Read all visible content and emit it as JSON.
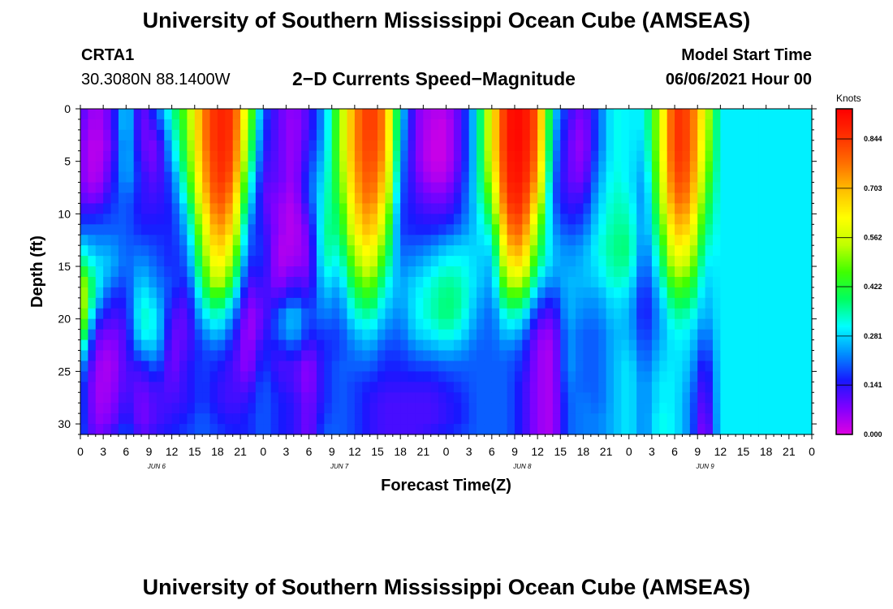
{
  "header": {
    "title_top": "University of Southern Mississippi Ocean Cube (AMSEAS)",
    "title_bottom": "University of Southern Mississippi Ocean Cube (AMSEAS)",
    "station_id": "CRTA1",
    "station_coords": "30.3080N  88.1400W",
    "plot_title": "2−D Currents Speed−Magnitude",
    "model_start_label": "Model Start Time",
    "model_start_value": "06/06/2021 Hour 00"
  },
  "chart_data": {
    "type": "heatmap",
    "title": "2−D Currents Speed−Magnitude",
    "xlabel": "Forecast Time(Z)",
    "ylabel": "Depth (ft)",
    "x_ticks": [
      "0",
      "3",
      "6",
      "9",
      "12",
      "15",
      "18",
      "21",
      "0",
      "3",
      "6",
      "9",
      "12",
      "15",
      "18",
      "21",
      "0",
      "3",
      "6",
      "9",
      "12",
      "15",
      "18",
      "21",
      "0",
      "3",
      "6",
      "9",
      "12",
      "15",
      "18",
      "21",
      "0"
    ],
    "day_labels": [
      "JUN 6",
      "JUN 7",
      "JUN 8",
      "JUN 9"
    ],
    "xlim_hours": [
      0,
      96
    ],
    "ylim": [
      0,
      31
    ],
    "y_ticks": [
      "0",
      "5",
      "10",
      "15",
      "20",
      "25",
      "30"
    ],
    "y_inverted": true,
    "colorbar": {
      "units": "Knots",
      "ticks": [
        "0.000",
        "0.141",
        "0.281",
        "0.422",
        "0.562",
        "0.703",
        "0.844"
      ],
      "tick_values": [
        0.0,
        0.141,
        0.281,
        0.422,
        0.562,
        0.703,
        0.844
      ],
      "range": [
        0,
        0.93
      ],
      "colors": [
        "#e000e0",
        "#8000ff",
        "#1818ff",
        "#0090ff",
        "#00ffff",
        "#00ff60",
        "#40ff00",
        "#c0ff00",
        "#ffff00",
        "#ffc000",
        "#ff7000",
        "#ff3000",
        "#ff0000"
      ]
    },
    "depth_levels_ft": [
      0,
      1.6,
      3.3,
      5,
      6.6,
      8.2,
      9.8,
      11.5,
      13.1,
      14.8,
      16.4,
      18,
      19.7,
      21.3,
      23,
      24.6,
      26.2,
      27.9,
      29.5,
      31
    ],
    "time_profiles": [
      {
        "t": 0,
        "v": [
          0.12,
          0.1,
          0.08,
          0.08,
          0.08,
          0.1,
          0.14,
          0.2,
          0.3,
          0.4,
          0.55,
          0.6,
          0.58,
          0.5,
          0.35,
          0.25,
          0.2,
          0.2,
          0.2,
          0.2
        ]
      },
      {
        "t": 2,
        "v": [
          0.04,
          0.03,
          0.02,
          0.02,
          0.03,
          0.06,
          0.14,
          0.2,
          0.24,
          0.3,
          0.32,
          0.3,
          0.2,
          0.12,
          0.08,
          0.06,
          0.05,
          0.05,
          0.06,
          0.08
        ]
      },
      {
        "t": 4,
        "v": [
          0.1,
          0.1,
          0.08,
          0.1,
          0.12,
          0.15,
          0.18,
          0.2,
          0.24,
          0.26,
          0.22,
          0.16,
          0.12,
          0.08,
          0.05,
          0.04,
          0.05,
          0.06,
          0.08,
          0.12
        ]
      },
      {
        "t": 6,
        "v": [
          0.3,
          0.3,
          0.28,
          0.28,
          0.26,
          0.22,
          0.2,
          0.2,
          0.2,
          0.2,
          0.18,
          0.16,
          0.14,
          0.12,
          0.12,
          0.12,
          0.12,
          0.14,
          0.16,
          0.2
        ]
      },
      {
        "t": 8,
        "v": [
          0.08,
          0.08,
          0.1,
          0.12,
          0.14,
          0.14,
          0.14,
          0.16,
          0.2,
          0.24,
          0.28,
          0.32,
          0.34,
          0.32,
          0.24,
          0.14,
          0.1,
          0.08,
          0.08,
          0.1
        ]
      },
      {
        "t": 10,
        "v": [
          0.2,
          0.14,
          0.08,
          0.08,
          0.1,
          0.12,
          0.14,
          0.16,
          0.18,
          0.2,
          0.22,
          0.26,
          0.3,
          0.3,
          0.26,
          0.2,
          0.14,
          0.12,
          0.12,
          0.14
        ]
      },
      {
        "t": 12,
        "v": [
          0.35,
          0.32,
          0.28,
          0.25,
          0.2,
          0.18,
          0.16,
          0.16,
          0.16,
          0.16,
          0.18,
          0.16,
          0.12,
          0.1,
          0.08,
          0.08,
          0.1,
          0.12,
          0.14,
          0.16
        ]
      },
      {
        "t": 14,
        "v": [
          0.5,
          0.48,
          0.46,
          0.44,
          0.4,
          0.36,
          0.3,
          0.26,
          0.22,
          0.2,
          0.16,
          0.12,
          0.1,
          0.1,
          0.12,
          0.14,
          0.14,
          0.14,
          0.16,
          0.18
        ]
      },
      {
        "t": 16,
        "v": [
          0.75,
          0.75,
          0.74,
          0.72,
          0.7,
          0.66,
          0.6,
          0.55,
          0.5,
          0.45,
          0.4,
          0.34,
          0.28,
          0.22,
          0.18,
          0.18,
          0.18,
          0.18,
          0.2,
          0.2
        ]
      },
      {
        "t": 18,
        "v": [
          0.88,
          0.88,
          0.88,
          0.87,
          0.86,
          0.84,
          0.8,
          0.75,
          0.7,
          0.65,
          0.58,
          0.45,
          0.35,
          0.28,
          0.2,
          0.16,
          0.14,
          0.14,
          0.16,
          0.18
        ]
      },
      {
        "t": 20,
        "v": [
          0.85,
          0.85,
          0.84,
          0.83,
          0.8,
          0.75,
          0.7,
          0.65,
          0.58,
          0.5,
          0.42,
          0.32,
          0.24,
          0.18,
          0.14,
          0.12,
          0.12,
          0.12,
          0.14,
          0.16
        ]
      },
      {
        "t": 22,
        "v": [
          0.55,
          0.52,
          0.48,
          0.44,
          0.38,
          0.34,
          0.28,
          0.22,
          0.2,
          0.16,
          0.12,
          0.08,
          0.05,
          0.04,
          0.05,
          0.06,
          0.1,
          0.14,
          0.16,
          0.16
        ]
      },
      {
        "t": 24,
        "v": [
          0.2,
          0.18,
          0.16,
          0.14,
          0.12,
          0.1,
          0.12,
          0.14,
          0.16,
          0.16,
          0.14,
          0.12,
          0.1,
          0.12,
          0.16,
          0.18,
          0.2,
          0.2,
          0.2,
          0.2
        ]
      },
      {
        "t": 26,
        "v": [
          0.1,
          0.1,
          0.1,
          0.1,
          0.1,
          0.08,
          0.06,
          0.06,
          0.04,
          0.04,
          0.06,
          0.12,
          0.2,
          0.2,
          0.14,
          0.12,
          0.14,
          0.16,
          0.16,
          0.16
        ]
      },
      {
        "t": 28,
        "v": [
          0.06,
          0.05,
          0.05,
          0.05,
          0.05,
          0.04,
          0.03,
          0.03,
          0.04,
          0.06,
          0.12,
          0.18,
          0.28,
          0.26,
          0.18,
          0.12,
          0.12,
          0.14,
          0.14,
          0.14
        ]
      },
      {
        "t": 30,
        "v": [
          0.12,
          0.12,
          0.14,
          0.16,
          0.18,
          0.18,
          0.14,
          0.1,
          0.08,
          0.08,
          0.1,
          0.14,
          0.18,
          0.16,
          0.1,
          0.06,
          0.06,
          0.08,
          0.08,
          0.08
        ]
      },
      {
        "t": 32,
        "v": [
          0.25,
          0.25,
          0.26,
          0.28,
          0.3,
          0.32,
          0.34,
          0.36,
          0.36,
          0.34,
          0.3,
          0.26,
          0.22,
          0.18,
          0.16,
          0.16,
          0.16,
          0.16,
          0.18,
          0.2
        ]
      },
      {
        "t": 34,
        "v": [
          0.5,
          0.5,
          0.5,
          0.48,
          0.46,
          0.44,
          0.4,
          0.38,
          0.34,
          0.3,
          0.26,
          0.22,
          0.2,
          0.18,
          0.18,
          0.2,
          0.2,
          0.2,
          0.2,
          0.2
        ]
      },
      {
        "t": 36,
        "v": [
          0.75,
          0.75,
          0.75,
          0.74,
          0.72,
          0.7,
          0.66,
          0.62,
          0.56,
          0.5,
          0.44,
          0.38,
          0.32,
          0.26,
          0.22,
          0.2,
          0.18,
          0.18,
          0.18,
          0.18
        ]
      },
      {
        "t": 38,
        "v": [
          0.86,
          0.86,
          0.85,
          0.84,
          0.82,
          0.8,
          0.76,
          0.72,
          0.66,
          0.6,
          0.52,
          0.44,
          0.36,
          0.3,
          0.24,
          0.2,
          0.16,
          0.14,
          0.14,
          0.14
        ]
      },
      {
        "t": 40,
        "v": [
          0.75,
          0.75,
          0.74,
          0.72,
          0.68,
          0.64,
          0.58,
          0.52,
          0.46,
          0.4,
          0.34,
          0.3,
          0.26,
          0.22,
          0.18,
          0.16,
          0.14,
          0.12,
          0.12,
          0.12
        ]
      },
      {
        "t": 42,
        "v": [
          0.3,
          0.28,
          0.26,
          0.24,
          0.22,
          0.2,
          0.18,
          0.18,
          0.2,
          0.22,
          0.24,
          0.24,
          0.22,
          0.2,
          0.18,
          0.16,
          0.14,
          0.12,
          0.12,
          0.12
        ]
      },
      {
        "t": 44,
        "v": [
          0.08,
          0.08,
          0.08,
          0.08,
          0.1,
          0.12,
          0.14,
          0.16,
          0.2,
          0.24,
          0.28,
          0.3,
          0.3,
          0.28,
          0.22,
          0.18,
          0.14,
          0.12,
          0.12,
          0.12
        ]
      },
      {
        "t": 46,
        "v": [
          0.04,
          0.03,
          0.02,
          0.02,
          0.04,
          0.08,
          0.12,
          0.16,
          0.22,
          0.28,
          0.32,
          0.34,
          0.34,
          0.3,
          0.24,
          0.18,
          0.14,
          0.12,
          0.12,
          0.14
        ]
      },
      {
        "t": 48,
        "v": [
          0.04,
          0.02,
          0.02,
          0.02,
          0.04,
          0.08,
          0.12,
          0.18,
          0.26,
          0.32,
          0.36,
          0.38,
          0.38,
          0.34,
          0.26,
          0.2,
          0.16,
          0.14,
          0.14,
          0.16
        ]
      },
      {
        "t": 50,
        "v": [
          0.12,
          0.12,
          0.12,
          0.12,
          0.14,
          0.16,
          0.18,
          0.22,
          0.28,
          0.32,
          0.34,
          0.36,
          0.34,
          0.3,
          0.24,
          0.2,
          0.18,
          0.16,
          0.16,
          0.18
        ]
      },
      {
        "t": 52,
        "v": [
          0.3,
          0.3,
          0.3,
          0.3,
          0.3,
          0.3,
          0.28,
          0.28,
          0.28,
          0.28,
          0.28,
          0.26,
          0.24,
          0.22,
          0.2,
          0.2,
          0.2,
          0.2,
          0.2,
          0.2
        ]
      },
      {
        "t": 54,
        "v": [
          0.62,
          0.62,
          0.62,
          0.6,
          0.56,
          0.5,
          0.44,
          0.36,
          0.3,
          0.26,
          0.24,
          0.22,
          0.2,
          0.2,
          0.2,
          0.2,
          0.2,
          0.2,
          0.2,
          0.2
        ]
      },
      {
        "t": 56,
        "v": [
          0.9,
          0.9,
          0.9,
          0.89,
          0.88,
          0.86,
          0.82,
          0.76,
          0.7,
          0.62,
          0.54,
          0.44,
          0.34,
          0.28,
          0.22,
          0.2,
          0.2,
          0.2,
          0.2,
          0.2
        ]
      },
      {
        "t": 58,
        "v": [
          0.92,
          0.92,
          0.92,
          0.91,
          0.9,
          0.88,
          0.85,
          0.8,
          0.74,
          0.66,
          0.56,
          0.44,
          0.32,
          0.24,
          0.18,
          0.16,
          0.14,
          0.14,
          0.14,
          0.14
        ]
      },
      {
        "t": 60,
        "v": [
          0.8,
          0.8,
          0.78,
          0.76,
          0.72,
          0.66,
          0.58,
          0.5,
          0.44,
          0.38,
          0.3,
          0.22,
          0.14,
          0.08,
          0.06,
          0.06,
          0.06,
          0.06,
          0.06,
          0.06
        ]
      },
      {
        "t": 62,
        "v": [
          0.3,
          0.28,
          0.26,
          0.24,
          0.22,
          0.2,
          0.22,
          0.24,
          0.26,
          0.26,
          0.22,
          0.16,
          0.1,
          0.06,
          0.04,
          0.04,
          0.04,
          0.04,
          0.04,
          0.04
        ]
      },
      {
        "t": 64,
        "v": [
          0.14,
          0.12,
          0.1,
          0.1,
          0.1,
          0.12,
          0.14,
          0.18,
          0.22,
          0.24,
          0.26,
          0.26,
          0.26,
          0.24,
          0.24,
          0.24,
          0.22,
          0.2,
          0.2,
          0.2
        ]
      },
      {
        "t": 66,
        "v": [
          0.08,
          0.06,
          0.05,
          0.06,
          0.08,
          0.12,
          0.16,
          0.2,
          0.24,
          0.26,
          0.26,
          0.24,
          0.22,
          0.2,
          0.2,
          0.2,
          0.2,
          0.22,
          0.22,
          0.22
        ]
      },
      {
        "t": 68,
        "v": [
          0.2,
          0.2,
          0.2,
          0.22,
          0.24,
          0.26,
          0.28,
          0.3,
          0.32,
          0.3,
          0.28,
          0.24,
          0.22,
          0.2,
          0.2,
          0.2,
          0.2,
          0.2,
          0.22,
          0.22
        ]
      },
      {
        "t": 70,
        "v": [
          0.32,
          0.32,
          0.32,
          0.32,
          0.33,
          0.34,
          0.35,
          0.36,
          0.37,
          0.36,
          0.34,
          0.3,
          0.28,
          0.26,
          0.26,
          0.26,
          0.26,
          0.26,
          0.26,
          0.26
        ]
      },
      {
        "t": 72,
        "v": [
          0.3,
          0.3,
          0.3,
          0.3,
          0.3,
          0.32,
          0.34,
          0.36,
          0.38,
          0.36,
          0.32,
          0.28,
          0.26,
          0.26,
          0.28,
          0.3,
          0.3,
          0.3,
          0.3,
          0.3
        ]
      },
      {
        "t": 74,
        "v": [
          0.3,
          0.3,
          0.28,
          0.26,
          0.24,
          0.22,
          0.22,
          0.22,
          0.2,
          0.18,
          0.16,
          0.14,
          0.14,
          0.16,
          0.18,
          0.2,
          0.22,
          0.22,
          0.22,
          0.22
        ]
      },
      {
        "t": 76,
        "v": [
          0.55,
          0.55,
          0.55,
          0.54,
          0.52,
          0.5,
          0.46,
          0.42,
          0.38,
          0.34,
          0.3,
          0.26,
          0.24,
          0.24,
          0.26,
          0.28,
          0.3,
          0.3,
          0.32,
          0.32
        ]
      },
      {
        "t": 78,
        "v": [
          0.86,
          0.86,
          0.86,
          0.85,
          0.83,
          0.8,
          0.75,
          0.7,
          0.64,
          0.58,
          0.5,
          0.42,
          0.36,
          0.32,
          0.3,
          0.3,
          0.3,
          0.3,
          0.3,
          0.3
        ]
      },
      {
        "t": 80,
        "v": [
          0.82,
          0.82,
          0.82,
          0.81,
          0.79,
          0.76,
          0.72,
          0.66,
          0.6,
          0.54,
          0.46,
          0.4,
          0.34,
          0.3,
          0.28,
          0.26,
          0.24,
          0.22,
          0.22,
          0.22
        ]
      },
      {
        "t": 82,
        "v": [
          0.6,
          0.58,
          0.56,
          0.54,
          0.5,
          0.46,
          0.42,
          0.38,
          0.34,
          0.3,
          0.28,
          0.26,
          0.24,
          0.2,
          0.16,
          0.12,
          0.1,
          0.08,
          0.06,
          0.04
        ]
      },
      {
        "t": 84,
        "v": [
          0.3,
          0.3,
          0.3,
          0.3,
          0.3,
          0.3,
          0.3,
          0.3,
          0.3,
          0.3,
          0.3,
          0.3,
          0.3,
          0.3,
          0.3,
          0.3,
          0.3,
          0.3,
          0.3,
          0.3
        ]
      }
    ]
  }
}
